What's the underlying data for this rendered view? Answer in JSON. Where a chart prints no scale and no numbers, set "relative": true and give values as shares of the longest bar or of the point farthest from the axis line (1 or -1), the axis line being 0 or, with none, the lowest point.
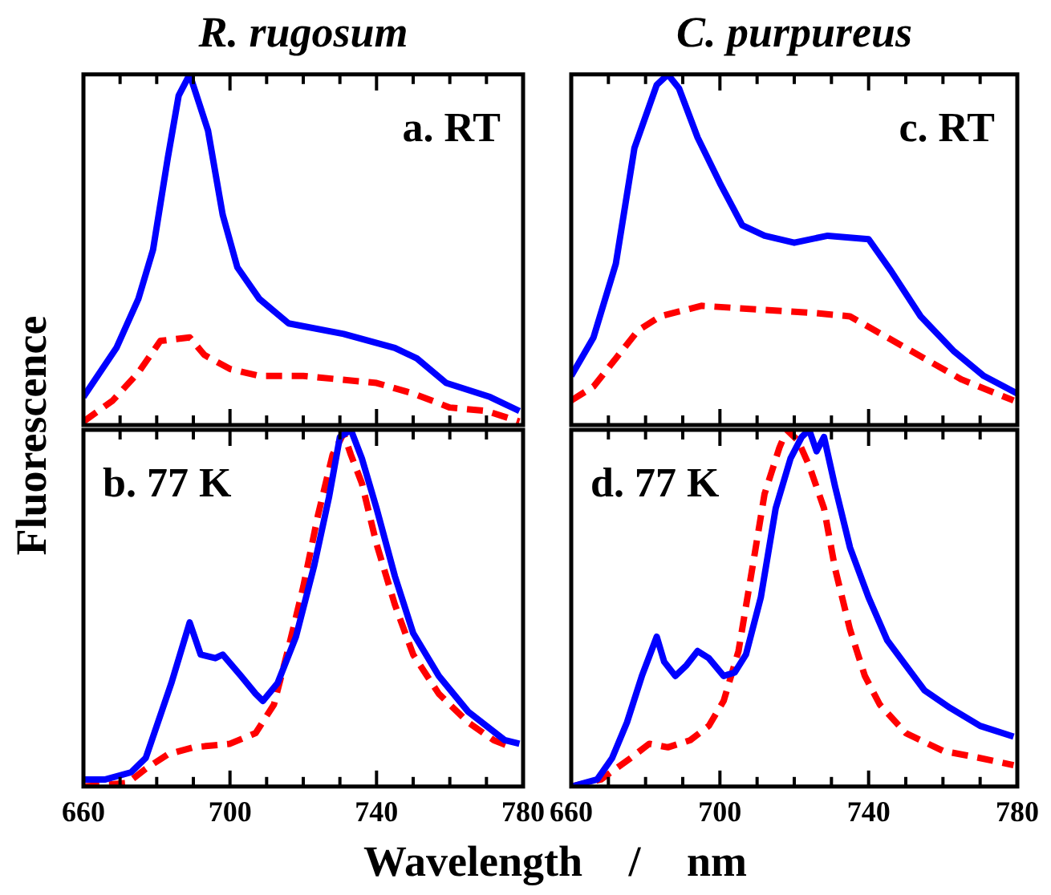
{
  "chart_data": [
    {
      "type": "line",
      "title": "R. rugosum",
      "ylabel": "Fluorescence",
      "annotations": [
        "a. RT"
      ],
      "relative": true,
      "legend": false,
      "marker": "none",
      "tick_labels": false,
      "xlim": [
        660,
        780
      ],
      "xticks": [
        660,
        {
          "value": 670,
          "label": null
        },
        {
          "value": 680,
          "label": null
        },
        {
          "value": 690,
          "label": null
        },
        700,
        {
          "value": 710,
          "label": null
        },
        {
          "value": 720,
          "label": null
        },
        {
          "value": 730,
          "label": null
        },
        740,
        {
          "value": 750,
          "label": null
        },
        {
          "value": 760,
          "label": null
        },
        {
          "value": 770,
          "label": null
        },
        780
      ],
      "series": [
        {
          "color": "#0000ff",
          "line_style": "solid",
          "x": [
            660,
            669,
            675,
            679,
            683,
            686,
            689,
            694,
            698,
            702,
            708,
            716,
            731,
            745,
            751,
            759,
            771,
            779
          ],
          "values": [
            0.08,
            0.22,
            0.36,
            0.5,
            0.76,
            0.94,
            1.0,
            0.84,
            0.6,
            0.45,
            0.36,
            0.29,
            0.26,
            0.22,
            0.19,
            0.12,
            0.08,
            0.04
          ]
        },
        {
          "color": "#ff0000",
          "line_style": "dashed",
          "x": [
            660,
            668,
            675,
            681,
            689,
            693,
            700,
            708,
            720,
            730,
            740,
            750,
            760,
            770,
            779
          ],
          "values": [
            0.01,
            0.07,
            0.15,
            0.24,
            0.25,
            0.2,
            0.16,
            0.14,
            0.14,
            0.13,
            0.12,
            0.09,
            0.05,
            0.04,
            0.01
          ]
        }
      ]
    },
    {
      "type": "line",
      "title": "C. purpureus",
      "annotations": [
        "c. RT"
      ],
      "relative": true,
      "legend": false,
      "marker": "none",
      "tick_labels": false,
      "xlim": [
        660,
        780
      ],
      "xticks": [
        660,
        {
          "value": 670,
          "label": null
        },
        {
          "value": 680,
          "label": null
        },
        {
          "value": 690,
          "label": null
        },
        700,
        {
          "value": 710,
          "label": null
        },
        {
          "value": 720,
          "label": null
        },
        {
          "value": 730,
          "label": null
        },
        740,
        {
          "value": 750,
          "label": null
        },
        {
          "value": 760,
          "label": null
        },
        {
          "value": 770,
          "label": null
        },
        780
      ],
      "series": [
        {
          "color": "#0000ff",
          "line_style": "solid",
          "x": [
            660,
            666,
            672,
            677,
            683,
            686,
            689,
            694,
            700,
            706,
            712,
            720,
            729,
            740,
            746,
            754,
            763,
            771,
            780
          ],
          "values": [
            0.14,
            0.25,
            0.46,
            0.79,
            0.97,
            1.0,
            0.96,
            0.82,
            0.69,
            0.57,
            0.54,
            0.52,
            0.54,
            0.53,
            0.44,
            0.31,
            0.21,
            0.14,
            0.09
          ]
        },
        {
          "color": "#ff0000",
          "line_style": "dashed",
          "x": [
            660,
            666,
            672,
            678,
            684,
            695,
            710,
            725,
            735,
            745,
            755,
            765,
            779
          ],
          "values": [
            0.07,
            0.11,
            0.19,
            0.27,
            0.31,
            0.34,
            0.33,
            0.32,
            0.31,
            0.25,
            0.19,
            0.13,
            0.07
          ]
        }
      ]
    },
    {
      "type": "line",
      "xlabel": "Wavelength / nm",
      "annotations": [
        "b. 77 K"
      ],
      "relative": true,
      "legend": false,
      "marker": "none",
      "tick_labels": "x",
      "xlim": [
        660,
        780
      ],
      "xticks": [
        660,
        {
          "value": 670,
          "label": null
        },
        {
          "value": 680,
          "label": null
        },
        {
          "value": 690,
          "label": null
        },
        700,
        {
          "value": 710,
          "label": null
        },
        {
          "value": 720,
          "label": null
        },
        {
          "value": 730,
          "label": null
        },
        740,
        {
          "value": 750,
          "label": null
        },
        {
          "value": 760,
          "label": null
        },
        {
          "value": 770,
          "label": null
        },
        780
      ],
      "series": [
        {
          "color": "#0000ff",
          "line_style": "solid",
          "x": [
            660,
            666,
            673,
            677,
            680,
            684,
            689,
            692,
            696,
            698,
            703,
            707,
            709,
            713,
            718,
            723,
            727,
            730,
            733,
            736,
            740,
            745,
            750,
            757,
            765,
            775,
            779
          ],
          "values": [
            0.02,
            0.02,
            0.04,
            0.08,
            0.17,
            0.29,
            0.46,
            0.37,
            0.36,
            0.37,
            0.31,
            0.26,
            0.24,
            0.29,
            0.42,
            0.62,
            0.81,
            0.98,
            1.0,
            0.92,
            0.78,
            0.59,
            0.43,
            0.31,
            0.21,
            0.13,
            0.12
          ]
        },
        {
          "color": "#ff0000",
          "line_style": "dashed",
          "x": [
            660,
            672,
            677,
            683,
            690,
            700,
            707,
            712,
            716,
            720,
            724,
            728,
            731,
            733,
            736,
            740,
            745,
            750,
            757,
            765,
            772,
            777
          ],
          "values": [
            0.0,
            0.01,
            0.05,
            0.09,
            0.11,
            0.12,
            0.15,
            0.23,
            0.39,
            0.56,
            0.76,
            0.93,
            0.99,
            0.93,
            0.85,
            0.68,
            0.51,
            0.37,
            0.26,
            0.18,
            0.13,
            0.11
          ]
        }
      ]
    },
    {
      "type": "line",
      "annotations": [
        "d. 77 K"
      ],
      "relative": true,
      "legend": false,
      "marker": "none",
      "tick_labels": "x",
      "xlim": [
        660,
        780
      ],
      "xticks": [
        660,
        {
          "value": 670,
          "label": null
        },
        {
          "value": 680,
          "label": null
        },
        {
          "value": 690,
          "label": null
        },
        700,
        {
          "value": 710,
          "label": null
        },
        {
          "value": 720,
          "label": null
        },
        {
          "value": 730,
          "label": null
        },
        740,
        {
          "value": 750,
          "label": null
        },
        {
          "value": 760,
          "label": null
        },
        {
          "value": 770,
          "label": null
        },
        780
      ],
      "series": [
        {
          "color": "#0000ff",
          "line_style": "solid",
          "x": [
            660,
            667,
            671,
            675,
            679,
            683,
            685,
            688,
            691,
            694,
            697,
            701,
            704,
            707,
            711,
            715,
            719,
            722,
            724,
            726,
            728,
            731,
            735,
            740,
            745,
            750,
            755,
            762,
            770,
            779
          ],
          "values": [
            0.0,
            0.02,
            0.08,
            0.18,
            0.31,
            0.42,
            0.35,
            0.31,
            0.34,
            0.38,
            0.36,
            0.31,
            0.32,
            0.37,
            0.53,
            0.78,
            0.92,
            0.98,
            1.0,
            0.94,
            0.98,
            0.84,
            0.67,
            0.53,
            0.41,
            0.34,
            0.27,
            0.22,
            0.17,
            0.14
          ]
        },
        {
          "color": "#ff0000",
          "line_style": "dashed",
          "x": [
            660,
            668,
            672,
            676,
            681,
            686,
            692,
            697,
            701,
            705,
            709,
            712,
            716,
            718,
            721,
            724,
            728,
            731,
            735,
            739,
            743,
            750,
            760,
            770,
            779
          ],
          "values": [
            0.0,
            0.02,
            0.05,
            0.08,
            0.12,
            0.11,
            0.13,
            0.17,
            0.24,
            0.38,
            0.63,
            0.82,
            0.95,
            1.0,
            0.97,
            0.9,
            0.78,
            0.61,
            0.44,
            0.31,
            0.23,
            0.15,
            0.1,
            0.08,
            0.06
          ]
        }
      ]
    }
  ]
}
